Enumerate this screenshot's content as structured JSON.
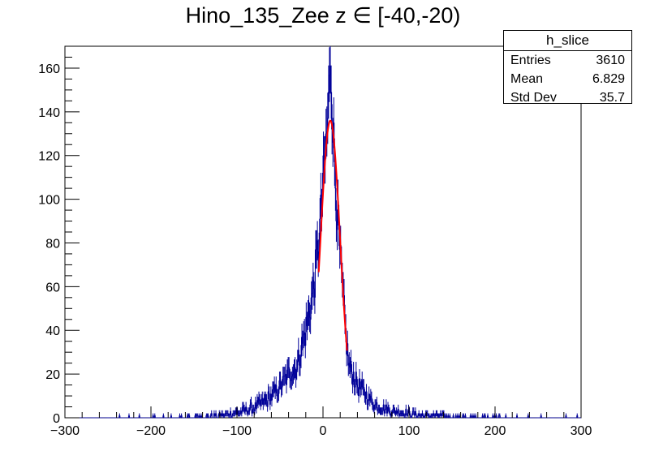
{
  "chart_data": {
    "type": "histogram",
    "title": "Hino_135_Zee z  ∈ [-40,-20)",
    "xlim": [
      -300,
      300
    ],
    "ylim": [
      0,
      170
    ],
    "x_ticks": [
      -300,
      -200,
      -100,
      0,
      100,
      200,
      300
    ],
    "y_ticks": [
      0,
      20,
      40,
      60,
      80,
      100,
      120,
      140,
      160
    ],
    "x_tick_labels": [
      "−300",
      "−200",
      "−100",
      "0",
      "100",
      "200",
      "300"
    ],
    "y_tick_labels": [
      "0",
      "20",
      "40",
      "60",
      "80",
      "100",
      "120",
      "140",
      "160"
    ],
    "xlabel": "",
    "ylabel": "",
    "grid": false,
    "histogram": {
      "name": "h_slice",
      "color": "#000099",
      "bin_width": 1,
      "peak_x": 9,
      "peak_value": 161,
      "approx_bins": [
        {
          "x": -40,
          "y": 20
        },
        {
          "x": -30,
          "y": 24
        },
        {
          "x": -20,
          "y": 40
        },
        {
          "x": -15,
          "y": 50
        },
        {
          "x": -10,
          "y": 62
        },
        {
          "x": -5,
          "y": 80
        },
        {
          "x": 0,
          "y": 105
        },
        {
          "x": 5,
          "y": 133
        },
        {
          "x": 9,
          "y": 161
        },
        {
          "x": 12,
          "y": 130
        },
        {
          "x": 15,
          "y": 105
        },
        {
          "x": 20,
          "y": 72
        },
        {
          "x": 25,
          "y": 45
        },
        {
          "x": 30,
          "y": 24
        },
        {
          "x": 40,
          "y": 15
        },
        {
          "x": 60,
          "y": 6
        },
        {
          "x": 80,
          "y": 3
        },
        {
          "x": 100,
          "y": 2
        }
      ]
    },
    "fit": {
      "type": "gaussian",
      "color": "#ff0000",
      "range": [
        -5,
        28
      ],
      "mean": 8.5,
      "sigma": 11.3,
      "amplitude": 136
    },
    "stats_box": {
      "title": "h_slice",
      "placement": "top-right",
      "rows": [
        {
          "label": "Entries",
          "value": "3610"
        },
        {
          "label": "Mean",
          "value": "6.829"
        },
        {
          "label": "Std Dev",
          "value": "35.7"
        }
      ]
    }
  }
}
